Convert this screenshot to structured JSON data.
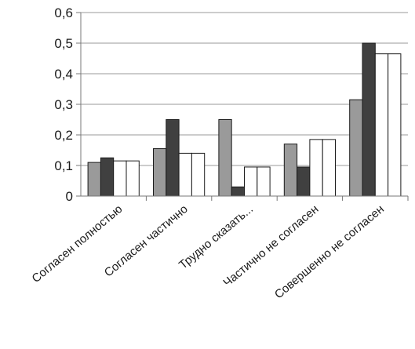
{
  "chart_data": {
    "type": "bar",
    "title": "",
    "xlabel": "",
    "ylabel": "",
    "ylim": [
      0,
      0.6
    ],
    "yticks": [
      "0",
      "0,1",
      "0,2",
      "0,3",
      "0,4",
      "0,5",
      "0,6"
    ],
    "grid": true,
    "legend": "none",
    "categories": [
      "Согласен полностью",
      "Согласен частично",
      "Трудно сказать...",
      "Частично не согласен",
      "Совершенно не согласен"
    ],
    "series": [
      {
        "values": [
          0.11,
          0.155,
          0.25,
          0.17,
          0.315
        ],
        "color": "#9a9a9a"
      },
      {
        "values": [
          0.125,
          0.25,
          0.03,
          0.095,
          0.5
        ],
        "color": "#404040"
      },
      {
        "values": [
          0.115,
          0.14,
          0.095,
          0.185,
          0.465
        ],
        "color": "#ffffff"
      },
      {
        "values": [
          0.115,
          0.14,
          0.095,
          0.185,
          0.465
        ],
        "color": "#ffffff"
      }
    ]
  }
}
